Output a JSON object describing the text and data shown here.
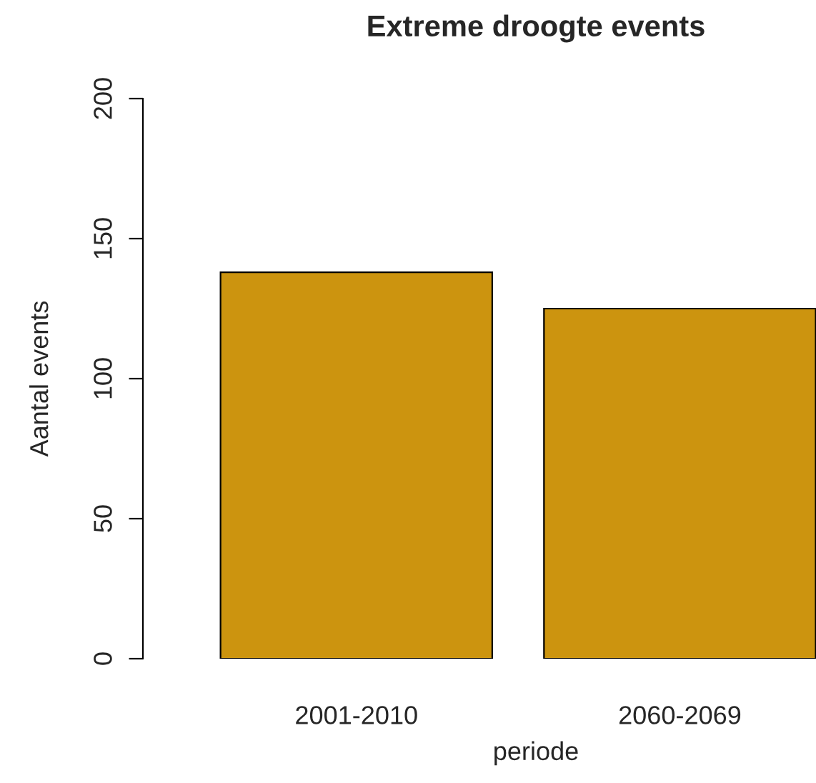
{
  "chart_data": {
    "type": "bar",
    "title": "Extreme droogte events",
    "xlabel": "periode",
    "ylabel": "Aantal events",
    "categories": [
      "2001-2010",
      "2060-2069"
    ],
    "values": [
      138,
      125
    ],
    "color": "#cc940f",
    "ylim": [
      0,
      200
    ],
    "yticks": [
      0,
      50,
      100,
      150,
      200
    ],
    "grid": false
  }
}
